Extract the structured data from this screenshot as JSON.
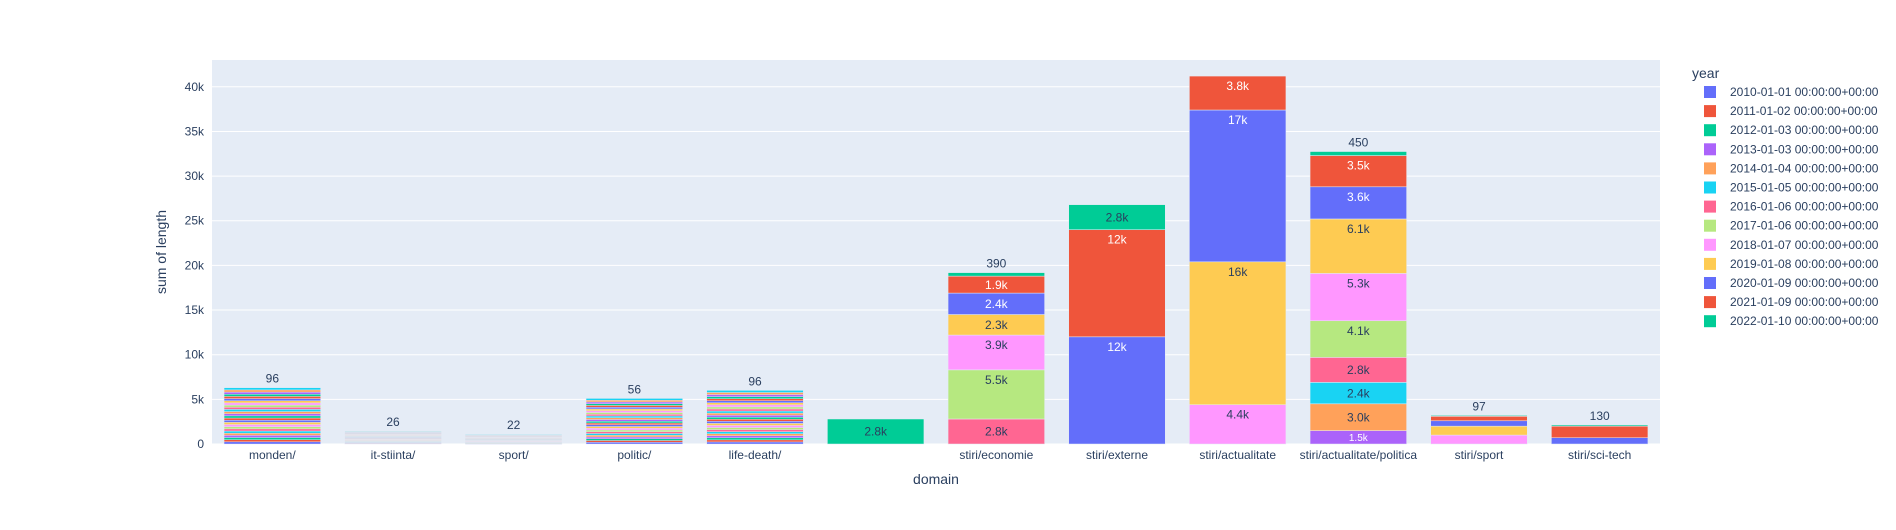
{
  "chart_data": {
    "type": "bar",
    "barmode": "stack",
    "xlabel": "domain",
    "ylabel": "sum of length",
    "ylim": [
      0,
      43000
    ],
    "y_ticks": [
      0,
      5000,
      10000,
      15000,
      20000,
      25000,
      30000,
      35000,
      40000
    ],
    "y_tick_labels": [
      "0",
      "5k",
      "10k",
      "15k",
      "20k",
      "25k",
      "30k",
      "35k",
      "40k"
    ],
    "grid": true,
    "legend": {
      "title": "year",
      "position": "right"
    },
    "categories": [
      "monden/",
      "it-stiinta/",
      "sport/",
      "politic/",
      "life-death/",
      "",
      "stiri/economie",
      "stiri/externe",
      "stiri/actualitate",
      "stiri/actualitate/politica",
      "stiri/sport",
      "stiri/sci-tech"
    ],
    "series": [
      {
        "name": "2010-01-01 00:00:00+00:00",
        "color": "#636efa",
        "values": [
          0,
          0,
          0,
          0,
          0,
          0,
          0,
          0,
          0,
          0,
          0,
          0
        ],
        "labels": [
          "",
          "",
          "",
          "",
          "",
          "",
          "",
          "",
          "",
          "",
          "",
          ""
        ]
      },
      {
        "name": "2011-01-02 00:00:00+00:00",
        "color": "#ef553b",
        "values": [
          0,
          0,
          0,
          0,
          0,
          0,
          0,
          0,
          0,
          0,
          0,
          0
        ],
        "labels": [
          "",
          "",
          "",
          "",
          "",
          "",
          "",
          "",
          "",
          "",
          "",
          ""
        ]
      },
      {
        "name": "2012-01-03 00:00:00+00:00",
        "color": "#00cc96",
        "values": [
          0,
          0,
          0,
          0,
          0,
          0,
          0,
          0,
          0,
          0,
          0,
          0
        ],
        "labels": [
          "",
          "",
          "",
          "",
          "",
          "",
          "",
          "",
          "",
          "",
          "",
          ""
        ]
      },
      {
        "name": "2013-01-03 00:00:00+00:00",
        "color": "#ab63fa",
        "values": [
          0,
          0,
          0,
          0,
          0,
          0,
          0,
          0,
          0,
          1500,
          0,
          0
        ],
        "labels": [
          "",
          "",
          "",
          "",
          "",
          "",
          "",
          "",
          "",
          "1.5k",
          "",
          ""
        ]
      },
      {
        "name": "2014-01-04 00:00:00+00:00",
        "color": "#ffa15a",
        "values": [
          0,
          0,
          0,
          0,
          0,
          0,
          0,
          0,
          0,
          3000,
          0,
          0
        ],
        "labels": [
          "",
          "",
          "",
          "",
          "",
          "",
          "",
          "",
          "",
          "3.0k",
          "",
          ""
        ]
      },
      {
        "name": "2015-01-05 00:00:00+00:00",
        "color": "#19d3f3",
        "values": [
          0,
          0,
          0,
          0,
          0,
          0,
          0,
          0,
          0,
          2400,
          0,
          0
        ],
        "labels": [
          "",
          "",
          "",
          "",
          "",
          "",
          "",
          "",
          "",
          "2.4k",
          "",
          ""
        ]
      },
      {
        "name": "2016-01-06 00:00:00+00:00",
        "color": "#ff6692",
        "values": [
          0,
          0,
          0,
          0,
          0,
          0,
          2800,
          0,
          0,
          2800,
          0,
          0
        ],
        "labels": [
          "",
          "",
          "",
          "",
          "",
          "",
          "2.8k",
          "",
          "",
          "2.8k",
          "",
          ""
        ]
      },
      {
        "name": "2017-01-06 00:00:00+00:00",
        "color": "#b6e880",
        "values": [
          0,
          0,
          0,
          0,
          0,
          0,
          5500,
          0,
          0,
          4100,
          0,
          0
        ],
        "labels": [
          "",
          "",
          "",
          "",
          "",
          "",
          "5.5k",
          "",
          "",
          "4.1k",
          "",
          ""
        ]
      },
      {
        "name": "2018-01-07 00:00:00+00:00",
        "color": "#ff97ff",
        "values": [
          0,
          0,
          0,
          0,
          0,
          0,
          3900,
          0,
          4400,
          5300,
          1000,
          0
        ],
        "labels": [
          "",
          "",
          "",
          "",
          "",
          "",
          "3.9k",
          "",
          "4.4k",
          "5.3k",
          "",
          ""
        ]
      },
      {
        "name": "2019-01-08 00:00:00+00:00",
        "color": "#fecb52",
        "values": [
          0,
          0,
          0,
          0,
          0,
          0,
          2300,
          0,
          16000,
          6100,
          1000,
          0
        ],
        "labels": [
          "",
          "",
          "",
          "",
          "",
          "",
          "2.3k",
          "",
          "16k",
          "6.1k",
          "",
          ""
        ]
      },
      {
        "name": "2020-01-09 00:00:00+00:00",
        "color": "#636efa",
        "values": [
          0,
          0,
          0,
          0,
          0,
          0,
          2400,
          12000,
          17000,
          3600,
          600,
          700
        ],
        "labels": [
          "",
          "",
          "",
          "",
          "",
          "",
          "2.4k",
          "12k",
          "17k",
          "3.6k",
          "",
          ""
        ]
      },
      {
        "name": "2021-01-09 00:00:00+00:00",
        "color": "#ef553b",
        "values": [
          0,
          0,
          0,
          0,
          0,
          0,
          1900,
          12000,
          3800,
          3500,
          500,
          1300
        ],
        "labels": [
          "",
          "",
          "",
          "",
          "",
          "",
          "1.9k",
          "12k",
          "3.8k",
          "3.5k",
          "",
          ""
        ]
      },
      {
        "name": "2022-01-10 00:00:00+00:00",
        "color": "#00cc96",
        "values": [
          0,
          0,
          0,
          0,
          0,
          2800,
          390,
          2800,
          0,
          450,
          97,
          130
        ],
        "labels": [
          "",
          "",
          "",
          "",
          "",
          "2.8k",
          "390",
          "2.8k",
          "",
          "450",
          "97",
          "130"
        ]
      }
    ],
    "thin_segment_colors": [
      "#636efa",
      "#ef553b",
      "#00cc96",
      "#ab63fa",
      "#ffa15a",
      "#19d3f3",
      "#ff6692",
      "#b6e880",
      "#ff97ff",
      "#fecb52"
    ],
    "thin_stacks": [
      {
        "category": "monden/",
        "total": 6300,
        "top_label": "96"
      },
      {
        "category": "it-stiinta/",
        "total": 1450,
        "top_label": "26"
      },
      {
        "category": "sport/",
        "total": 1100,
        "top_label": "22"
      },
      {
        "category": "politic/",
        "total": 5100,
        "top_label": "56"
      },
      {
        "category": "life-death/",
        "total": 6000,
        "top_label": "96"
      }
    ]
  }
}
